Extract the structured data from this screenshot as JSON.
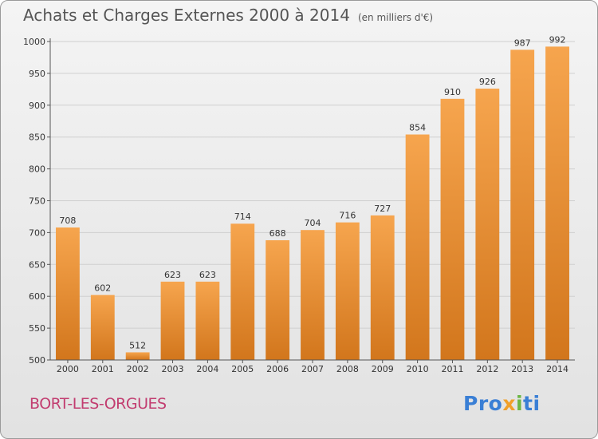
{
  "header": {
    "title": "Achats et Charges Externes 2000 à 2014",
    "subtitle": "(en milliers d'€)"
  },
  "footer": {
    "town": "BORT-LES-ORGUES",
    "logo": {
      "p1": "Pro",
      "p2": "x",
      "p3": "i",
      "p4": "ti"
    }
  },
  "colors": {
    "bar_light": "#f6a54e",
    "bar_dark": "#d2761c",
    "town_text": "#c23d70"
  },
  "chart_data": {
    "type": "bar",
    "title": "Achats et Charges Externes 2000 à 2014",
    "subtitle": "(en milliers d'€)",
    "categories": [
      "2000",
      "2001",
      "2002",
      "2003",
      "2004",
      "2005",
      "2006",
      "2007",
      "2008",
      "2009",
      "2010",
      "2011",
      "2012",
      "2013",
      "2014"
    ],
    "values": [
      708,
      602,
      512,
      623,
      623,
      714,
      688,
      704,
      716,
      727,
      854,
      910,
      926,
      987,
      992
    ],
    "xlabel": "",
    "ylabel": "",
    "ylim": [
      500,
      1000
    ],
    "yticks": [
      500,
      550,
      600,
      650,
      700,
      750,
      800,
      850,
      900,
      950,
      1000
    ],
    "grid": true,
    "legend": "none"
  }
}
